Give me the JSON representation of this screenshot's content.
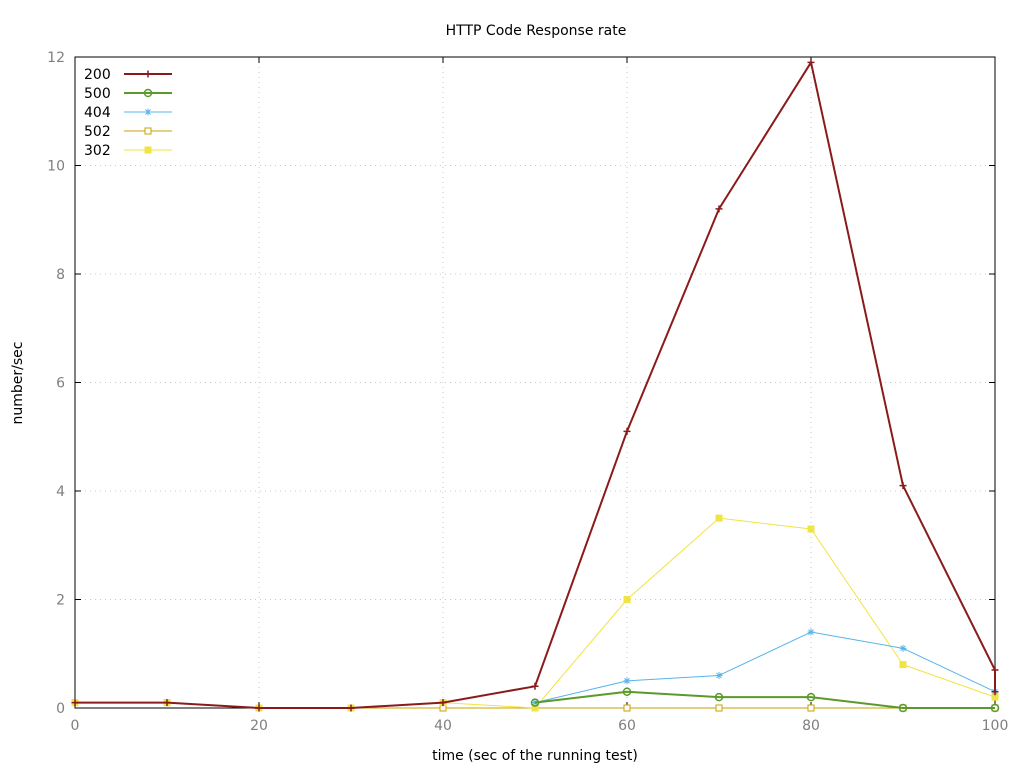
{
  "chart_data": {
    "type": "line",
    "title": "HTTP Code Response rate",
    "xlabel": "time (sec of the running test)",
    "ylabel": "number/sec",
    "xlim": [
      0,
      100
    ],
    "ylim": [
      0,
      12
    ],
    "xticks": [
      0,
      20,
      40,
      60,
      80,
      100
    ],
    "yticks": [
      0,
      2,
      4,
      6,
      8,
      10,
      12
    ],
    "grid": true,
    "legend_position": "top-left",
    "series": [
      {
        "name": "200",
        "color": "#8b1a1a",
        "marker": "plus",
        "points": [
          [
            0,
            0.1
          ],
          [
            10,
            0.1
          ],
          [
            20,
            0
          ],
          [
            30,
            0
          ],
          [
            40,
            0.1
          ],
          [
            50,
            0.4
          ],
          [
            60,
            5.1
          ],
          [
            70,
            9.2
          ],
          [
            80,
            11.9
          ],
          [
            90,
            4.1
          ],
          [
            100,
            0.7
          ],
          [
            100,
            0.3
          ]
        ]
      },
      {
        "name": "500",
        "color": "#5a9a2a",
        "marker": "circle",
        "points": [
          [
            50,
            0.1
          ],
          [
            60,
            0.3
          ],
          [
            70,
            0.2
          ],
          [
            80,
            0.2
          ],
          [
            90,
            0
          ],
          [
            100,
            0
          ]
        ]
      },
      {
        "name": "404",
        "color": "#56b4e9",
        "marker": "star",
        "points": [
          [
            50,
            0.1
          ],
          [
            60,
            0.5
          ],
          [
            70,
            0.6
          ],
          [
            80,
            1.4
          ],
          [
            90,
            1.1
          ],
          [
            100,
            0.3
          ]
        ]
      },
      {
        "name": "502",
        "color": "#c8a000",
        "marker": "square-open",
        "points": [
          [
            0,
            0.1
          ],
          [
            10,
            0.1
          ],
          [
            20,
            0
          ],
          [
            30,
            0
          ],
          [
            40,
            0
          ],
          [
            50,
            0
          ],
          [
            60,
            0
          ],
          [
            70,
            0
          ],
          [
            80,
            0
          ],
          [
            90,
            0
          ],
          [
            100,
            0
          ]
        ]
      },
      {
        "name": "302",
        "color": "#f0e442",
        "marker": "square-filled",
        "points": [
          [
            0,
            0.1
          ],
          [
            10,
            0.1
          ],
          [
            20,
            0
          ],
          [
            30,
            0
          ],
          [
            40,
            0.1
          ],
          [
            50,
            0
          ],
          [
            60,
            2.0
          ],
          [
            70,
            3.5
          ],
          [
            80,
            3.3
          ],
          [
            90,
            0.8
          ],
          [
            100,
            0.2
          ]
        ]
      }
    ]
  }
}
